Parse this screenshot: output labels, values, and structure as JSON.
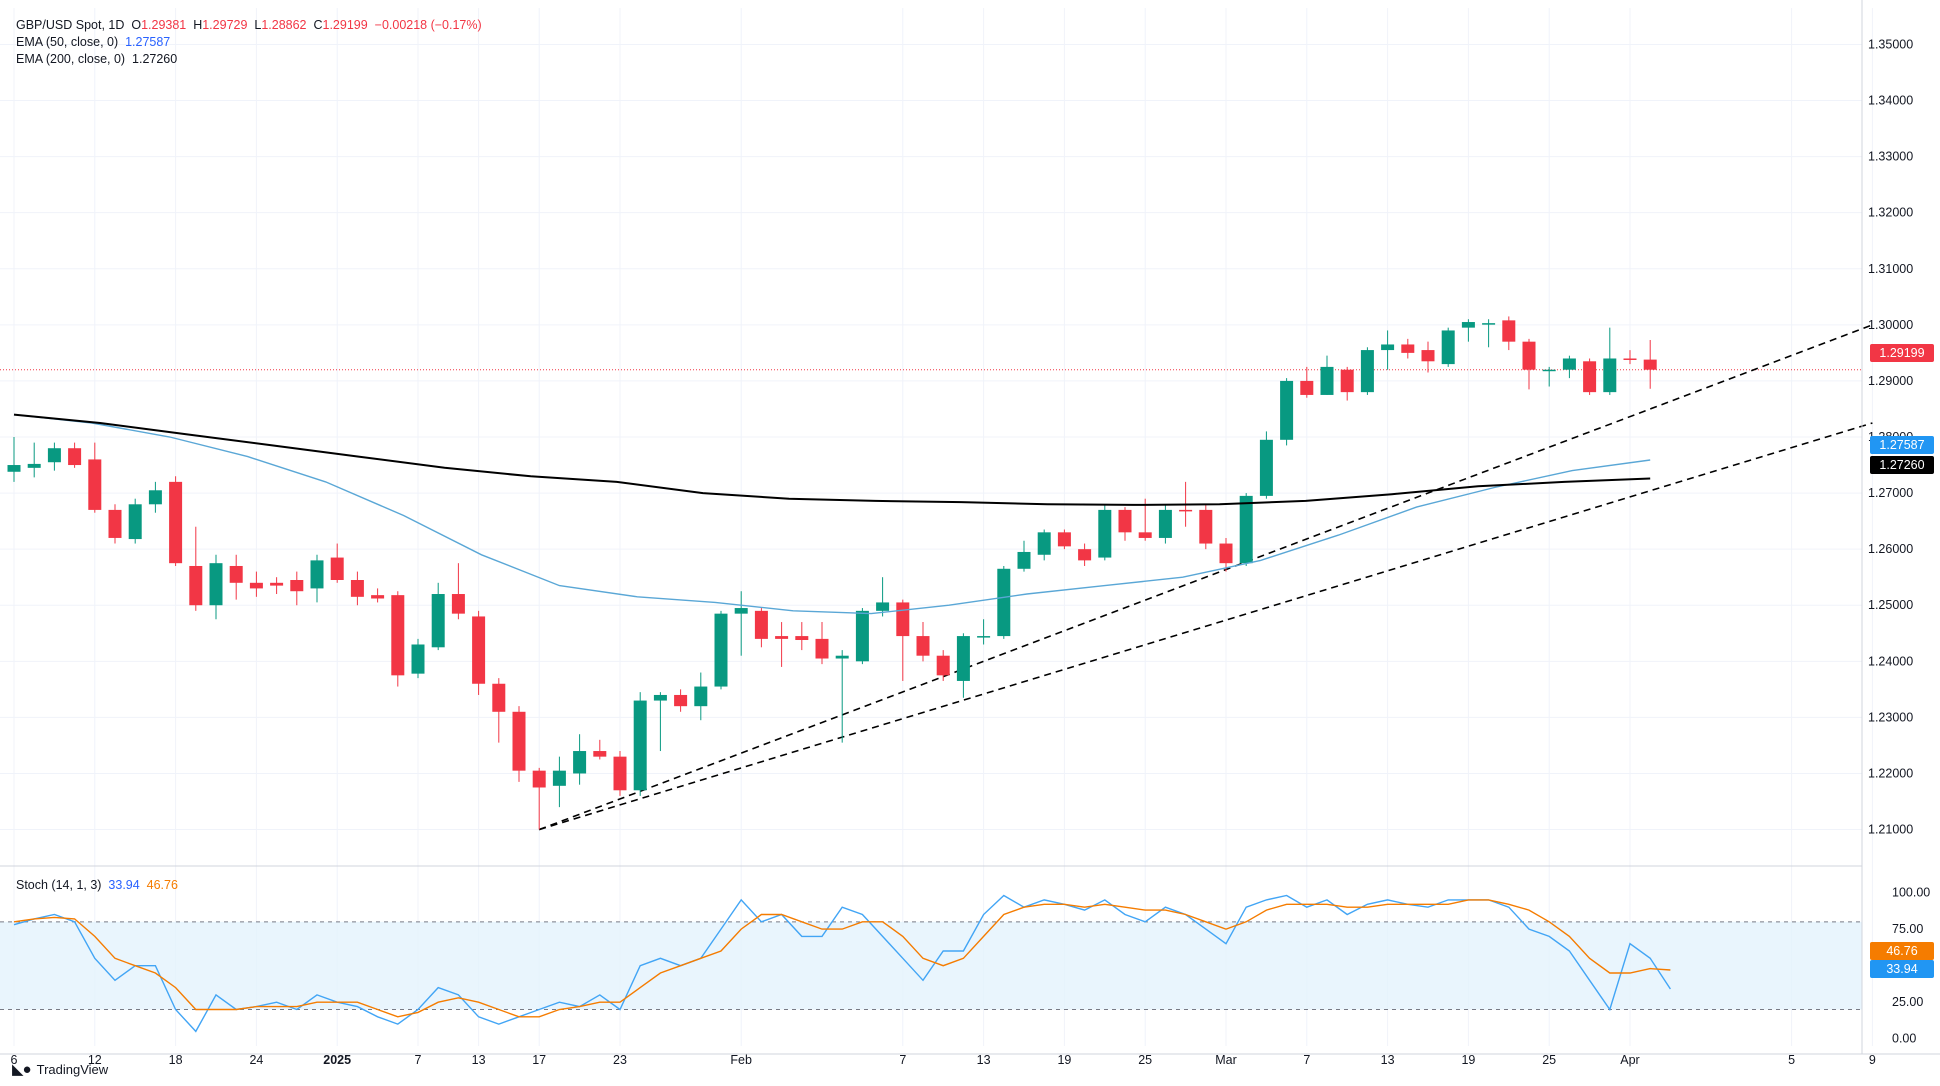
{
  "legend": {
    "symbol": "GBP/USD Spot, 1D",
    "open_label": "O",
    "open": "1.29381",
    "high_label": "H",
    "high": "1.29729",
    "low_label": "L",
    "low": "1.28862",
    "close_label": "C",
    "close": "1.29199",
    "change": "−0.00218 (−0.17%)",
    "ema50_label": "EMA (50, close, 0)",
    "ema50_value": "1.27587",
    "ema200_label": "EMA (200, close, 0)",
    "ema200_value": "1.27260"
  },
  "stoch_legend": {
    "label": "Stoch (14, 1, 3)",
    "k": "33.94",
    "d": "46.76"
  },
  "badges": {
    "price": "1.29199",
    "ema50": "1.27587",
    "ema200": "1.27260",
    "stoch_d": "46.76",
    "stoch_k": "33.94"
  },
  "branding": {
    "name": "TradingView"
  },
  "colors": {
    "up": "#089981",
    "down": "#f23645",
    "ema50": "#5aa7d6",
    "ema200": "#000000",
    "stoch_k": "#42a5f5",
    "stoch_d": "#f57c00",
    "band": "#e3f2fd",
    "trend": "#000000"
  },
  "chart_data": [
    {
      "type": "candlestick",
      "title": "GBP/USD Spot, 1D",
      "ylim": [
        1.2,
        1.355
      ],
      "y_ticks": [
        "1.21000",
        "1.22000",
        "1.23000",
        "1.24000",
        "1.25000",
        "1.26000",
        "1.27000",
        "1.28000",
        "1.29000",
        "1.30000",
        "1.31000",
        "1.32000",
        "1.33000",
        "1.34000",
        "1.35000"
      ],
      "x_ticks": [
        "6",
        "12",
        "18",
        "24",
        "2025",
        "7",
        "13",
        "17",
        "23",
        "Feb",
        "7",
        "13",
        "19",
        "25",
        "Mar",
        "7",
        "13",
        "19",
        "25",
        "Apr",
        "5",
        "9"
      ],
      "candles": [
        {
          "o": 1.2738,
          "h": 1.28,
          "l": 1.272,
          "c": 1.275
        },
        {
          "o": 1.2745,
          "h": 1.279,
          "l": 1.2728,
          "c": 1.2752
        },
        {
          "o": 1.2755,
          "h": 1.279,
          "l": 1.274,
          "c": 1.278
        },
        {
          "o": 1.278,
          "h": 1.279,
          "l": 1.2745,
          "c": 1.275
        },
        {
          "o": 1.276,
          "h": 1.279,
          "l": 1.2665,
          "c": 1.267
        },
        {
          "o": 1.267,
          "h": 1.268,
          "l": 1.261,
          "c": 1.262
        },
        {
          "o": 1.2618,
          "h": 1.269,
          "l": 1.261,
          "c": 1.268
        },
        {
          "o": 1.268,
          "h": 1.272,
          "l": 1.2665,
          "c": 1.2705
        },
        {
          "o": 1.272,
          "h": 1.273,
          "l": 1.257,
          "c": 1.2575
        },
        {
          "o": 1.257,
          "h": 1.264,
          "l": 1.249,
          "c": 1.25
        },
        {
          "o": 1.25,
          "h": 1.259,
          "l": 1.2475,
          "c": 1.2575
        },
        {
          "o": 1.257,
          "h": 1.259,
          "l": 1.251,
          "c": 1.254
        },
        {
          "o": 1.254,
          "h": 1.256,
          "l": 1.2515,
          "c": 1.253
        },
        {
          "o": 1.254,
          "h": 1.255,
          "l": 1.252,
          "c": 1.2535
        },
        {
          "o": 1.2545,
          "h": 1.256,
          "l": 1.25,
          "c": 1.2525
        },
        {
          "o": 1.253,
          "h": 1.259,
          "l": 1.2505,
          "c": 1.258
        },
        {
          "o": 1.2585,
          "h": 1.261,
          "l": 1.254,
          "c": 1.2545
        },
        {
          "o": 1.2545,
          "h": 1.256,
          "l": 1.25,
          "c": 1.2515
        },
        {
          "o": 1.2518,
          "h": 1.253,
          "l": 1.2505,
          "c": 1.2512
        },
        {
          "o": 1.2518,
          "h": 1.2525,
          "l": 1.2355,
          "c": 1.2375
        },
        {
          "o": 1.2378,
          "h": 1.244,
          "l": 1.237,
          "c": 1.243
        },
        {
          "o": 1.2425,
          "h": 1.254,
          "l": 1.242,
          "c": 1.252
        },
        {
          "o": 1.252,
          "h": 1.2575,
          "l": 1.2475,
          "c": 1.2485
        },
        {
          "o": 1.248,
          "h": 1.249,
          "l": 1.234,
          "c": 1.236
        },
        {
          "o": 1.236,
          "h": 1.237,
          "l": 1.2255,
          "c": 1.231
        },
        {
          "o": 1.231,
          "h": 1.232,
          "l": 1.2185,
          "c": 1.2205
        },
        {
          "o": 1.2205,
          "h": 1.221,
          "l": 1.21,
          "c": 1.2175
        },
        {
          "o": 1.2178,
          "h": 1.223,
          "l": 1.214,
          "c": 1.2205
        },
        {
          "o": 1.22,
          "h": 1.227,
          "l": 1.218,
          "c": 1.224
        },
        {
          "o": 1.224,
          "h": 1.226,
          "l": 1.2225,
          "c": 1.223
        },
        {
          "o": 1.223,
          "h": 1.224,
          "l": 1.216,
          "c": 1.217
        },
        {
          "o": 1.217,
          "h": 1.2345,
          "l": 1.216,
          "c": 1.233
        },
        {
          "o": 1.233,
          "h": 1.2345,
          "l": 1.224,
          "c": 1.234
        },
        {
          "o": 1.234,
          "h": 1.235,
          "l": 1.231,
          "c": 1.232
        },
        {
          "o": 1.232,
          "h": 1.238,
          "l": 1.2295,
          "c": 1.2355
        },
        {
          "o": 1.2355,
          "h": 1.249,
          "l": 1.235,
          "c": 1.2485
        },
        {
          "o": 1.2485,
          "h": 1.2525,
          "l": 1.241,
          "c": 1.2495
        },
        {
          "o": 1.249,
          "h": 1.2495,
          "l": 1.2425,
          "c": 1.244
        },
        {
          "o": 1.2445,
          "h": 1.247,
          "l": 1.239,
          "c": 1.244
        },
        {
          "o": 1.2445,
          "h": 1.247,
          "l": 1.242,
          "c": 1.2438
        },
        {
          "o": 1.244,
          "h": 1.247,
          "l": 1.2395,
          "c": 1.2405
        },
        {
          "o": 1.2405,
          "h": 1.242,
          "l": 1.2255,
          "c": 1.241
        },
        {
          "o": 1.24,
          "h": 1.2495,
          "l": 1.2395,
          "c": 1.249
        },
        {
          "o": 1.249,
          "h": 1.255,
          "l": 1.248,
          "c": 1.2505
        },
        {
          "o": 1.2505,
          "h": 1.251,
          "l": 1.2365,
          "c": 1.2445
        },
        {
          "o": 1.2445,
          "h": 1.247,
          "l": 1.24,
          "c": 1.241
        },
        {
          "o": 1.241,
          "h": 1.242,
          "l": 1.2365,
          "c": 1.2375
        },
        {
          "o": 1.2365,
          "h": 1.245,
          "l": 1.2335,
          "c": 1.2445
        },
        {
          "o": 1.2445,
          "h": 1.2475,
          "l": 1.243,
          "c": 1.2445
        },
        {
          "o": 1.2445,
          "h": 1.257,
          "l": 1.244,
          "c": 1.2565
        },
        {
          "o": 1.2565,
          "h": 1.2615,
          "l": 1.256,
          "c": 1.2595
        },
        {
          "o": 1.259,
          "h": 1.2635,
          "l": 1.258,
          "c": 1.263
        },
        {
          "o": 1.263,
          "h": 1.2635,
          "l": 1.26,
          "c": 1.2605
        },
        {
          "o": 1.26,
          "h": 1.261,
          "l": 1.257,
          "c": 1.258
        },
        {
          "o": 1.2585,
          "h": 1.268,
          "l": 1.258,
          "c": 1.267
        },
        {
          "o": 1.267,
          "h": 1.2675,
          "l": 1.2615,
          "c": 1.263
        },
        {
          "o": 1.263,
          "h": 1.269,
          "l": 1.2615,
          "c": 1.262
        },
        {
          "o": 1.262,
          "h": 1.268,
          "l": 1.261,
          "c": 1.267
        },
        {
          "o": 1.267,
          "h": 1.272,
          "l": 1.264,
          "c": 1.2668
        },
        {
          "o": 1.267,
          "h": 1.268,
          "l": 1.26,
          "c": 1.261
        },
        {
          "o": 1.261,
          "h": 1.262,
          "l": 1.256,
          "c": 1.2575
        },
        {
          "o": 1.2575,
          "h": 1.27,
          "l": 1.257,
          "c": 1.2695
        },
        {
          "o": 1.2695,
          "h": 1.281,
          "l": 1.269,
          "c": 1.2795
        },
        {
          "o": 1.2795,
          "h": 1.2905,
          "l": 1.2785,
          "c": 1.29
        },
        {
          "o": 1.29,
          "h": 1.2925,
          "l": 1.287,
          "c": 1.2875
        },
        {
          "o": 1.2875,
          "h": 1.2945,
          "l": 1.2875,
          "c": 1.2925
        },
        {
          "o": 1.292,
          "h": 1.2925,
          "l": 1.2865,
          "c": 1.288
        },
        {
          "o": 1.288,
          "h": 1.296,
          "l": 1.2875,
          "c": 1.2955
        },
        {
          "o": 1.2955,
          "h": 1.299,
          "l": 1.292,
          "c": 1.2965
        },
        {
          "o": 1.2965,
          "h": 1.2975,
          "l": 1.294,
          "c": 1.295
        },
        {
          "o": 1.2955,
          "h": 1.297,
          "l": 1.2915,
          "c": 1.2935
        },
        {
          "o": 1.293,
          "h": 1.2995,
          "l": 1.2925,
          "c": 1.299
        },
        {
          "o": 1.2995,
          "h": 1.301,
          "l": 1.297,
          "c": 1.3005
        },
        {
          "o": 1.3003,
          "h": 1.301,
          "l": 1.296,
          "c": 1.3003
        },
        {
          "o": 1.3008,
          "h": 1.3015,
          "l": 1.2955,
          "c": 1.297
        },
        {
          "o": 1.297,
          "h": 1.2975,
          "l": 1.2885,
          "c": 1.292
        },
        {
          "o": 1.2918,
          "h": 1.2925,
          "l": 1.289,
          "c": 1.292
        },
        {
          "o": 1.292,
          "h": 1.2945,
          "l": 1.2905,
          "c": 1.294
        },
        {
          "o": 1.2935,
          "h": 1.294,
          "l": 1.2875,
          "c": 1.288
        },
        {
          "o": 1.288,
          "h": 1.2995,
          "l": 1.2875,
          "c": 1.294
        },
        {
          "o": 1.294,
          "h": 1.2955,
          "l": 1.293,
          "c": 1.2938
        },
        {
          "o": 1.2938,
          "h": 1.2973,
          "l": 1.2886,
          "c": 1.292
        }
      ],
      "ema200": [
        1.284,
        1.2825,
        1.2805,
        1.2785,
        1.2765,
        1.2745,
        1.273,
        1.272,
        1.27,
        1.269,
        1.2686,
        1.2684,
        1.268,
        1.2679,
        1.268,
        1.2686,
        1.2698,
        1.2712,
        1.272,
        1.2726
      ],
      "ema50": [
        1.284,
        1.2825,
        1.28,
        1.2765,
        1.272,
        1.266,
        1.259,
        1.2535,
        1.2515,
        1.2505,
        1.249,
        1.2485,
        1.25,
        1.252,
        1.2535,
        1.255,
        1.258,
        1.2625,
        1.2675,
        1.271,
        1.274,
        1.2759
      ],
      "trendlines": [
        {
          "from_bar": 26,
          "from": 1.21,
          "to_bar": 92,
          "to": 1.3
        },
        {
          "from_bar": 26,
          "from": 1.21,
          "to_bar": 92,
          "to": 1.2825
        }
      ]
    },
    {
      "type": "line",
      "title": "Stoch (14, 1, 3)",
      "ylim": [
        0,
        100
      ],
      "y_ticks": [
        "0.00",
        "25.00",
        "75.00",
        "100.00"
      ],
      "band": [
        20,
        80
      ],
      "series": [
        {
          "name": "%K",
          "values": [
            78,
            82,
            85,
            80,
            55,
            40,
            50,
            50,
            20,
            5,
            30,
            20,
            22,
            25,
            20,
            30,
            25,
            22,
            15,
            10,
            20,
            35,
            30,
            15,
            10,
            15,
            20,
            25,
            22,
            30,
            20,
            50,
            55,
            50,
            55,
            75,
            95,
            80,
            85,
            70,
            70,
            90,
            85,
            70,
            55,
            40,
            60,
            60,
            85,
            98,
            90,
            95,
            92,
            88,
            95,
            85,
            80,
            90,
            85,
            75,
            65,
            90,
            95,
            98,
            90,
            95,
            85,
            92,
            95,
            92,
            90,
            95,
            95,
            95,
            90,
            75,
            70,
            60,
            40,
            20,
            65,
            55,
            34
          ]
        },
        {
          "name": "%D",
          "values": [
            80,
            82,
            83,
            82,
            70,
            55,
            50,
            45,
            35,
            20,
            20,
            20,
            22,
            22,
            22,
            25,
            25,
            25,
            20,
            15,
            18,
            25,
            28,
            25,
            20,
            15,
            15,
            20,
            22,
            25,
            25,
            35,
            45,
            50,
            55,
            60,
            75,
            85,
            85,
            80,
            75,
            75,
            80,
            80,
            70,
            55,
            50,
            55,
            70,
            85,
            90,
            92,
            92,
            90,
            92,
            90,
            88,
            88,
            85,
            80,
            75,
            80,
            88,
            92,
            92,
            92,
            90,
            90,
            92,
            92,
            92,
            92,
            95,
            95,
            92,
            88,
            80,
            70,
            55,
            45,
            45,
            48,
            47
          ]
        }
      ]
    }
  ]
}
